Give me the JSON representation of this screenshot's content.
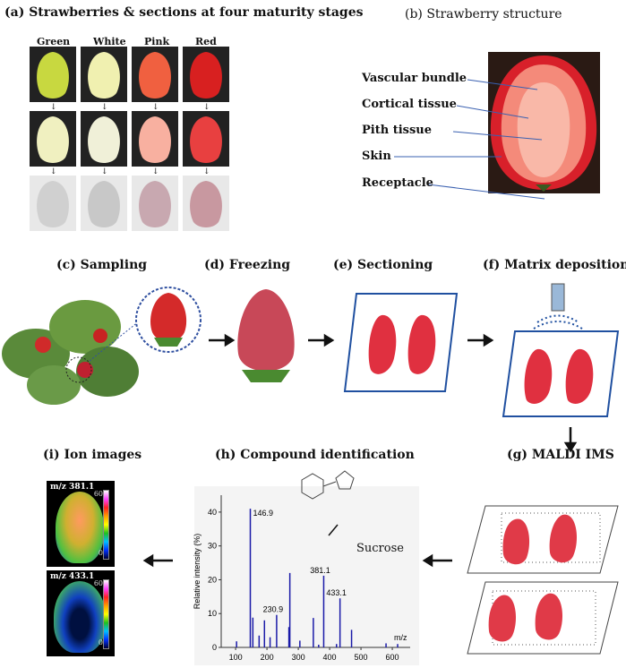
{
  "panels": {
    "a": {
      "title": "(a) Strawberries & sections at four maturity stages",
      "stages": [
        "Green",
        "White",
        "Pink",
        "Red"
      ]
    },
    "b": {
      "title": "(b) Strawberry structure",
      "labels": [
        "Vascular bundle",
        "Cortical tissue",
        "Pith tissue",
        "Skin",
        "Receptacle"
      ]
    },
    "c": {
      "title": "(c) Sampling"
    },
    "d": {
      "title": "(d) Freezing"
    },
    "e": {
      "title": "(e) Sectioning"
    },
    "f": {
      "title": "(f) Matrix deposition"
    },
    "g": {
      "title": "(g) MALDI IMS"
    },
    "h": {
      "title": "(h) Compound identification",
      "compound": "Sucrose"
    },
    "i": {
      "title": "(i) Ion images",
      "images": [
        {
          "label": "m/z 381.1",
          "max": "60",
          "min": "0"
        },
        {
          "label": "m/z 433.1",
          "max": "60",
          "min": "0"
        }
      ]
    }
  },
  "chart_data": {
    "type": "bar",
    "xlabel": "m/z",
    "ylabel": "Relative intensity (%)",
    "xlim": [
      54,
      657
    ],
    "ylim": [
      0,
      45
    ],
    "xticks": [
      100,
      200,
      300,
      400,
      500,
      600
    ],
    "yticks": [
      0,
      10,
      20,
      30,
      40
    ],
    "peaks": [
      [
        103,
        1.8
      ],
      [
        146.9,
        41
      ],
      [
        155,
        8.8
      ],
      [
        175,
        3.5
      ],
      [
        192,
        8
      ],
      [
        210,
        3
      ],
      [
        230.9,
        9.6
      ],
      [
        270,
        6
      ],
      [
        273,
        22
      ],
      [
        305,
        2
      ],
      [
        348,
        8.7
      ],
      [
        365,
        0.8
      ],
      [
        381.1,
        21.2
      ],
      [
        422,
        1
      ],
      [
        433.1,
        14.5
      ],
      [
        470,
        5.2
      ],
      [
        580,
        1.2
      ],
      [
        617,
        1
      ]
    ],
    "labels": [
      "146.9",
      "230.9",
      "381.1",
      "433.1"
    ],
    "color": "#1a1aa8"
  }
}
